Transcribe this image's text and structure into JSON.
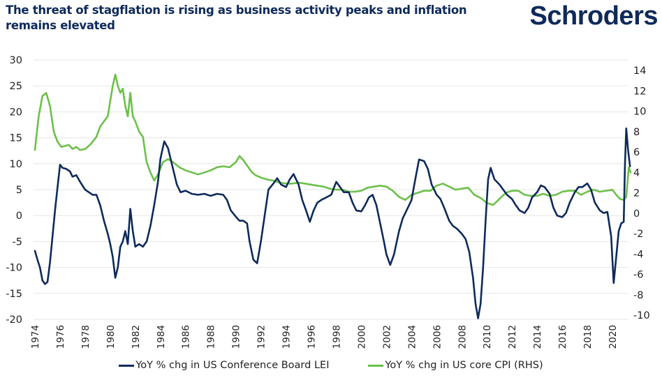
{
  "header": {
    "title": "The threat of stagflation is rising as business activity peaks and inflation remains elevated",
    "logo": "Schroders"
  },
  "colors": {
    "lei": "#0e2a5a",
    "cpi": "#6cc04a",
    "grid": "#e6e6e6",
    "text": "#222222"
  },
  "chart_data": {
    "type": "line",
    "title": "The threat of stagflation is rising as business activity peaks and inflation remains elevated",
    "xlabel": "",
    "ylabel": "",
    "grid": true,
    "legend_position": "bottom",
    "x_ticks": [
      "1974",
      "1976",
      "1978",
      "1980",
      "1982",
      "1984",
      "1986",
      "1988",
      "1990",
      "1992",
      "1994",
      "1996",
      "1998",
      "2000",
      "2002",
      "2004",
      "2006",
      "2008",
      "2010",
      "2012",
      "2014",
      "2016",
      "2018",
      "2020"
    ],
    "xlim": [
      1974,
      2021.5
    ],
    "left_axis": {
      "ylim": [
        -20,
        30
      ],
      "ticks": [
        "30",
        "25",
        "20",
        "15",
        "10",
        "5",
        "0",
        "-5",
        "-10",
        "-15",
        "-20"
      ]
    },
    "right_axis": {
      "ylim": [
        -10,
        15
      ],
      "ticks": [
        "14",
        "12",
        "10",
        "8",
        "6",
        "4",
        "2",
        "0",
        "-2",
        "-4",
        "-6",
        "-8",
        "-10"
      ]
    },
    "series": [
      {
        "name": "YoY % chg in US Conference Board LEI",
        "axis": "left",
        "x": [
          1974.0,
          1974.2,
          1974.4,
          1974.6,
          1974.8,
          1975.0,
          1975.2,
          1975.4,
          1975.6,
          1975.8,
          1976.0,
          1976.2,
          1976.5,
          1976.8,
          1977.0,
          1977.3,
          1977.6,
          1978.0,
          1978.3,
          1978.6,
          1978.9,
          1979.2,
          1979.5,
          1979.8,
          1980.0,
          1980.2,
          1980.4,
          1980.6,
          1980.8,
          1981.0,
          1981.2,
          1981.4,
          1981.6,
          1981.8,
          1982.0,
          1982.3,
          1982.6,
          1982.9,
          1983.2,
          1983.5,
          1983.8,
          1984.0,
          1984.3,
          1984.6,
          1985.0,
          1985.3,
          1985.6,
          1986.0,
          1986.5,
          1987.0,
          1987.5,
          1988.0,
          1988.5,
          1989.0,
          1989.3,
          1989.6,
          1990.0,
          1990.3,
          1990.6,
          1990.9,
          1991.1,
          1991.4,
          1991.7,
          1992.0,
          1992.3,
          1992.6,
          1993.0,
          1993.3,
          1993.6,
          1994.0,
          1994.3,
          1994.6,
          1995.0,
          1995.3,
          1995.6,
          1995.9,
          1996.2,
          1996.5,
          1996.8,
          1997.2,
          1997.6,
          1998.0,
          1998.3,
          1998.6,
          1999.0,
          1999.3,
          1999.6,
          2000.0,
          2000.3,
          2000.6,
          2000.9,
          2001.2,
          2001.5,
          2001.8,
          2002.0,
          2002.3,
          2002.6,
          2003.0,
          2003.3,
          2003.6,
          2004.0,
          2004.3,
          2004.6,
          2005.0,
          2005.3,
          2005.6,
          2006.0,
          2006.3,
          2006.6,
          2007.0,
          2007.3,
          2007.6,
          2008.0,
          2008.3,
          2008.6,
          2008.9,
          2009.1,
          2009.3,
          2009.5,
          2009.7,
          2009.9,
          2010.1,
          2010.3,
          2010.6,
          2011.0,
          2011.3,
          2011.6,
          2012.0,
          2012.3,
          2012.6,
          2013.0,
          2013.3,
          2013.6,
          2014.0,
          2014.3,
          2014.6,
          2015.0,
          2015.3,
          2015.6,
          2016.0,
          2016.3,
          2016.6,
          2017.0,
          2017.3,
          2017.6,
          2018.0,
          2018.3,
          2018.6,
          2019.0,
          2019.3,
          2019.6,
          2019.9,
          2020.1,
          2020.3,
          2020.5,
          2020.7,
          2020.9,
          2021.0,
          2021.1,
          2021.25,
          2021.4
        ],
        "values": [
          -6.8,
          -8.5,
          -10,
          -12.5,
          -13.2,
          -12.8,
          -9,
          -4,
          1,
          5.5,
          9.8,
          9.2,
          9,
          8.5,
          7.5,
          7.8,
          6.5,
          5,
          4.5,
          4,
          4,
          2,
          -1,
          -3.5,
          -5.5,
          -8,
          -12,
          -10,
          -6,
          -5,
          -3,
          -5.5,
          1.3,
          -3,
          -6,
          -5.5,
          -6,
          -5,
          -2,
          2,
          6.5,
          11,
          14.3,
          13,
          9,
          6,
          4.5,
          4.8,
          4.2,
          4,
          4.2,
          3.8,
          4.2,
          4,
          3,
          1,
          -0.2,
          -1,
          -1,
          -1.5,
          -5,
          -8.5,
          -9.2,
          -5,
          0,
          5,
          6.2,
          7.2,
          6,
          5.5,
          7,
          8,
          6,
          3,
          1,
          -1.2,
          1,
          2.5,
          3,
          3.5,
          4,
          6.5,
          5.5,
          4.5,
          4.5,
          2.5,
          1,
          0.8,
          2,
          3.5,
          4,
          2,
          -1.5,
          -5,
          -7.5,
          -9.5,
          -7.5,
          -3,
          -0.5,
          1,
          3,
          7,
          10.8,
          10.5,
          9,
          6,
          4,
          3.2,
          1.5,
          -1,
          -2,
          -2.5,
          -3.5,
          -4.5,
          -7,
          -12,
          -17,
          -19.8,
          -17,
          -10,
          -1,
          7,
          9.2,
          7,
          6,
          5,
          4,
          3.2,
          2,
          1,
          0.5,
          1.5,
          3.5,
          4.5,
          5.8,
          5.5,
          4.2,
          1.5,
          0,
          -0.3,
          0.5,
          2.5,
          4.5,
          5.5,
          5.5,
          6.2,
          5,
          2.5,
          1,
          0.5,
          0.7,
          -4,
          -13,
          -8,
          -3,
          -1.5,
          -1.2,
          10,
          16.8,
          12.5,
          9.5
        ]
      },
      {
        "name": "YoY % chg in US core CPI (RHS)",
        "axis": "right",
        "x": [
          1974.0,
          1974.3,
          1974.6,
          1974.9,
          1975.2,
          1975.5,
          1975.8,
          1976.1,
          1976.4,
          1976.7,
          1977.0,
          1977.3,
          1977.6,
          1978.0,
          1978.3,
          1978.6,
          1978.9,
          1979.2,
          1979.5,
          1979.8,
          1980.0,
          1980.2,
          1980.4,
          1980.6,
          1980.8,
          1981.0,
          1981.2,
          1981.4,
          1981.6,
          1981.8,
          1982.0,
          1982.3,
          1982.6,
          1982.9,
          1983.2,
          1983.5,
          1983.8,
          1984.2,
          1984.6,
          1985.0,
          1985.5,
          1986.0,
          1986.5,
          1987.0,
          1987.5,
          1988.0,
          1988.5,
          1989.0,
          1989.5,
          1990.0,
          1990.3,
          1990.6,
          1991.0,
          1991.3,
          1991.6,
          1992.0,
          1992.5,
          1993.0,
          1993.5,
          1994.0,
          1994.5,
          1995.0,
          1995.5,
          1996.0,
          1996.5,
          1997.0,
          1997.5,
          1998.0,
          1998.5,
          1999.0,
          1999.5,
          2000.0,
          2000.5,
          2001.0,
          2001.5,
          2002.0,
          2002.5,
          2003.0,
          2003.5,
          2004.0,
          2004.5,
          2005.0,
          2005.5,
          2006.0,
          2006.5,
          2007.0,
          2007.5,
          2008.0,
          2008.5,
          2009.0,
          2009.5,
          2010.0,
          2010.5,
          2011.0,
          2011.5,
          2012.0,
          2012.5,
          2013.0,
          2013.5,
          2014.0,
          2014.5,
          2015.0,
          2015.5,
          2016.0,
          2016.5,
          2017.0,
          2017.5,
          2018.0,
          2018.5,
          2019.0,
          2019.5,
          2020.0,
          2020.3,
          2020.6,
          2020.9,
          2021.1,
          2021.3,
          2021.45
        ],
        "values": [
          6.2,
          9.5,
          11.5,
          11.8,
          10.5,
          8,
          7,
          6.5,
          6.6,
          6.7,
          6.3,
          6.5,
          6.2,
          6.3,
          6.6,
          7,
          7.5,
          8.5,
          9,
          9.5,
          11,
          12.5,
          13.6,
          12.5,
          11.8,
          12.2,
          10.5,
          9.5,
          11.8,
          9.5,
          9,
          8,
          7.5,
          5,
          4,
          3.2,
          3.8,
          5,
          5.3,
          5,
          4.5,
          4.2,
          4,
          3.8,
          4,
          4.2,
          4.5,
          4.6,
          4.5,
          5,
          5.6,
          5.2,
          4.5,
          4,
          3.7,
          3.5,
          3.3,
          3.2,
          3,
          2.9,
          2.9,
          3,
          2.9,
          2.8,
          2.7,
          2.6,
          2.4,
          2.3,
          2.3,
          2.1,
          2.1,
          2.2,
          2.5,
          2.6,
          2.7,
          2.6,
          2.2,
          1.6,
          1.3,
          1.8,
          2,
          2.2,
          2.2,
          2.7,
          2.9,
          2.6,
          2.3,
          2.4,
          2.5,
          1.8,
          1.5,
          1,
          0.8,
          1.4,
          2,
          2.2,
          2.2,
          1.8,
          1.7,
          1.7,
          1.9,
          1.7,
          1.8,
          2.1,
          2.2,
          2.2,
          1.8,
          2.1,
          2.3,
          2.1,
          2.2,
          2.3,
          1.8,
          1.4,
          1.3,
          1.6,
          4.5,
          4.0
        ]
      }
    ]
  },
  "legend": [
    {
      "label": "YoY % chg in US Conference Board LEI",
      "color": "#0e2a5a"
    },
    {
      "label": "YoY % chg in US core CPI (RHS)",
      "color": "#6cc04a"
    }
  ]
}
